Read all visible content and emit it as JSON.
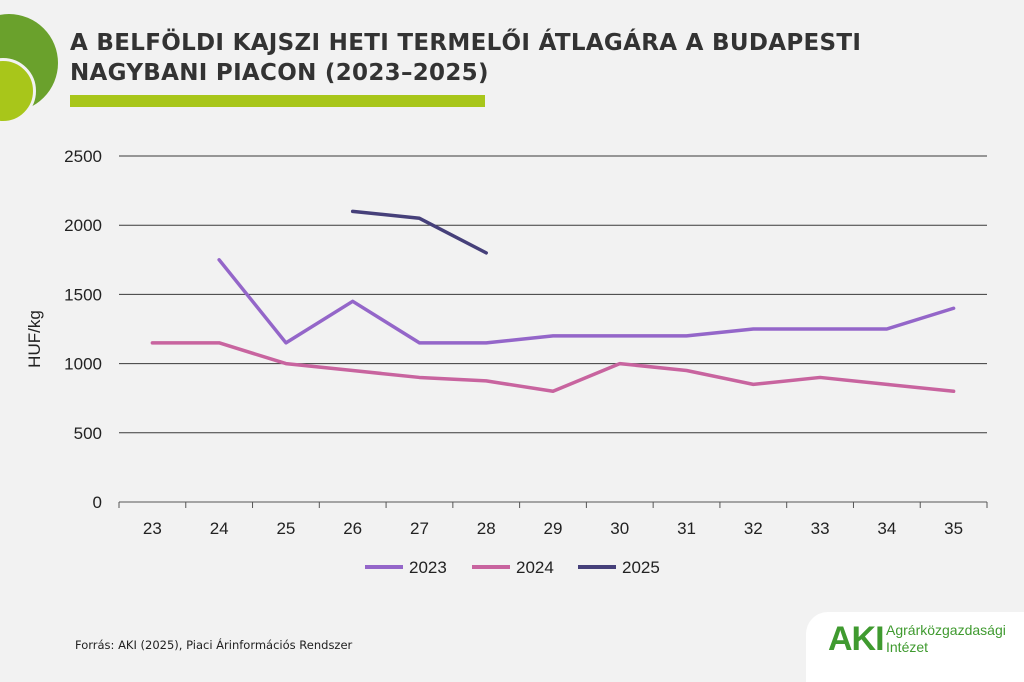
{
  "header": {
    "title_line1": "A BELFÖLDI KAJSZI HETI TERMELŐI ÁTLAGÁRA A BUDAPESTI",
    "title_line2": "NAGYBANI PIACON (2023–2025)"
  },
  "chart_data": {
    "type": "line",
    "title": "A BELFÖLDI KAJSZI HETI TERMELŐI ÁTLAGÁRA A BUDAPESTI NAGYBANI PIACON (2023–2025)",
    "xlabel": "",
    "ylabel": "HUF/kg",
    "categories": [
      "23",
      "24",
      "25",
      "26",
      "27",
      "28",
      "29",
      "30",
      "31",
      "32",
      "33",
      "34",
      "35"
    ],
    "ylim": [
      0,
      2500
    ],
    "yticks": [
      0,
      500,
      1000,
      1500,
      2000,
      2500
    ],
    "grid": "horizontal",
    "legend": "bottom-center",
    "series": [
      {
        "name": "2023",
        "color": "#9466c9",
        "values": [
          null,
          1750,
          1150,
          1450,
          1150,
          1150,
          1200,
          1200,
          1200,
          1250,
          1250,
          1250,
          1400
        ]
      },
      {
        "name": "2024",
        "color": "#c8649f",
        "values": [
          1150,
          1150,
          1000,
          950,
          900,
          875,
          800,
          1000,
          950,
          850,
          900,
          850,
          800
        ]
      },
      {
        "name": "2025",
        "color": "#46407a",
        "values": [
          null,
          null,
          null,
          2100,
          2050,
          1800,
          null,
          null,
          null,
          null,
          null,
          null,
          null
        ]
      }
    ]
  },
  "footer": {
    "source": "Forrás: AKI (2025), Piaci Árinformációs Rendszer"
  },
  "logo": {
    "mark": "AKI",
    "name_line1": "Agrárközgazdasági",
    "name_line2": "Intézet",
    "color": "#3f9a2f"
  }
}
